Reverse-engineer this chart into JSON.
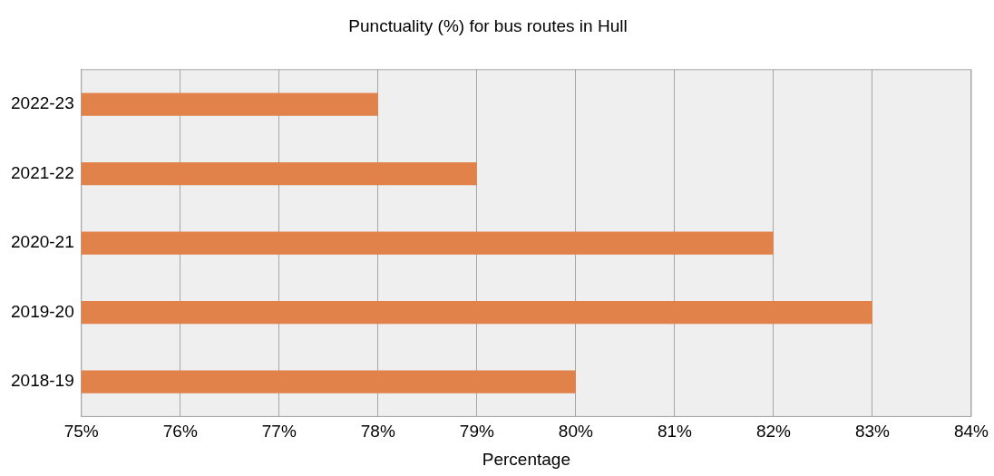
{
  "chart_data": {
    "type": "bar",
    "orientation": "horizontal",
    "title": "Punctuality (%) for bus routes in Hull",
    "xlabel": "Percentage",
    "categories": [
      "2022-23",
      "2021-22",
      "2020-21",
      "2019-20",
      "2018-19"
    ],
    "values": [
      78,
      79,
      82,
      83,
      80
    ],
    "color": "#e0824a",
    "xlim": [
      75,
      84
    ],
    "xticks": [
      {
        "value": 75,
        "label": "75%"
      },
      {
        "value": 76,
        "label": "76%"
      },
      {
        "value": 77,
        "label": "77%"
      },
      {
        "value": 78,
        "label": "78%"
      },
      {
        "value": 79,
        "label": "79%"
      },
      {
        "value": 80,
        "label": "80%"
      },
      {
        "value": 81,
        "label": "81%"
      },
      {
        "value": 82,
        "label": "82%"
      },
      {
        "value": 83,
        "label": "83%"
      },
      {
        "value": 84,
        "label": "84%"
      }
    ],
    "grid": "x",
    "legend": false
  }
}
